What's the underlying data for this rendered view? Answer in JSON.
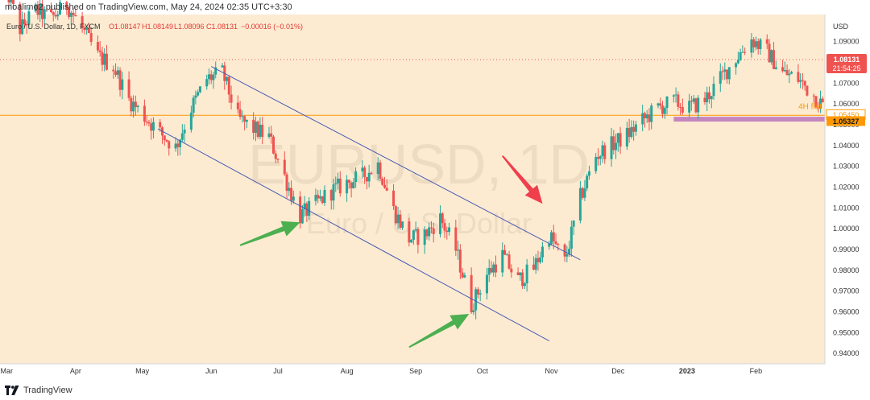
{
  "publisher": "moalimo2 published on TradingView.com, May 24, 2024 02:35 UTC+3:30",
  "legend": {
    "instrument": "Euro / U.S. Dollar, 1D, FXCM",
    "o": "O1.08147",
    "h": "H1.08149",
    "l": "L1.08096",
    "c": "C1.08131",
    "change": "−0.00016 (−0.01%)"
  },
  "watermark": {
    "symbol": "EURUSD, 1D",
    "name": "Euro / U.S. Dollar"
  },
  "footer": {
    "brand": "TradingView"
  },
  "colors": {
    "background": "#fcebd1",
    "up": "#26a69a",
    "down": "#ef5350",
    "channel": "#4a5bb5",
    "flat_line": "#ff9800",
    "flat_zone": "#c586c0",
    "arrow_up": "#4caf50",
    "arrow_down": "#ef3f4d"
  },
  "icons": {
    "brand_logo": "tradingview-logo-icon"
  },
  "chart_data": {
    "type": "candlestick",
    "currency": "USD",
    "ylim": [
      0.935,
      1.103
    ],
    "x_axis_labels": [
      "Mar",
      "Apr",
      "May",
      "Jun",
      "Jul",
      "Aug",
      "Sep",
      "Oct",
      "Nov",
      "Dec",
      "2023",
      "Feb"
    ],
    "x_axis_dates": [
      "2022-03-01",
      "2022-04-01",
      "2022-05-01",
      "2022-06-01",
      "2022-07-01",
      "2022-08-01",
      "2022-09-01",
      "2022-10-01",
      "2022-11-01",
      "2022-12-01",
      "2023-01-01",
      "2023-02-01"
    ],
    "x_range": [
      "2022-02-26",
      "2023-03-04"
    ],
    "y_ticks": [
      0.94,
      0.95,
      0.96,
      0.97,
      0.98,
      0.99,
      1.0,
      1.01,
      1.02,
      1.03,
      1.04,
      1.05,
      1.06,
      1.07,
      1.08,
      1.09
    ],
    "y_tick_labels": [
      "0.94000",
      "0.95000",
      "0.96000",
      "0.97000",
      "0.98000",
      "0.99000",
      "1.00000",
      "1.01000",
      "1.02000",
      "1.03000",
      "1.04000",
      "1.05000",
      "1.06000",
      "1.07000",
      "1.08000",
      "1.09000"
    ],
    "price_tags": [
      {
        "value": 1.08131,
        "label": "1.08131",
        "sublabel": "21:54:25",
        "color": "#ef5350"
      },
      {
        "value": 1.0545,
        "label": "1.05450",
        "color": "#ff9800",
        "note": "4H flat"
      },
      {
        "value": 1.05327,
        "label": "1.05327",
        "color": "#ff9800"
      }
    ],
    "horizontal_lines": [
      {
        "value": 1.0545,
        "style": "solid",
        "color": "#ff9800"
      },
      {
        "value": 1.08131,
        "style": "dotted",
        "color": "#ef5350"
      }
    ],
    "zones": [
      {
        "from_date": "2022-12-26",
        "to_date": "2023-03-04",
        "y0": 1.0515,
        "y1": 1.0538,
        "color": "#c586c0"
      }
    ],
    "channel": [
      {
        "from": [
          "2022-06-01",
          1.078
        ],
        "to": [
          "2022-11-14",
          0.985
        ]
      },
      {
        "from": [
          "2022-05-08",
          1.048
        ],
        "to": [
          "2022-10-31",
          0.946
        ]
      }
    ],
    "arrows": [
      {
        "direction": "up",
        "from": [
          "2022-06-14",
          0.992
        ],
        "to": [
          "2022-07-11",
          1.003
        ]
      },
      {
        "direction": "up",
        "from": [
          "2022-08-29",
          0.943
        ],
        "to": [
          "2022-09-25",
          0.959
        ]
      },
      {
        "direction": "down",
        "from": [
          "2022-10-10",
          1.035
        ],
        "to": [
          "2022-10-28",
          1.012
        ]
      }
    ],
    "price_path": [
      [
        "2022-02-28",
        1.118
      ],
      [
        "2022-03-07",
        1.096
      ],
      [
        "2022-03-14",
        1.105
      ],
      [
        "2022-03-21",
        1.101
      ],
      [
        "2022-03-28",
        1.108
      ],
      [
        "2022-04-04",
        1.096
      ],
      [
        "2022-04-11",
        1.083
      ],
      [
        "2022-04-18",
        1.078
      ],
      [
        "2022-04-25",
        1.062
      ],
      [
        "2022-05-02",
        1.054
      ],
      [
        "2022-05-09",
        1.046
      ],
      [
        "2022-05-16",
        1.039
      ],
      [
        "2022-05-23",
        1.058
      ],
      [
        "2022-05-30",
        1.072
      ],
      [
        "2022-06-06",
        1.075
      ],
      [
        "2022-06-13",
        1.053
      ],
      [
        "2022-06-20",
        1.048
      ],
      [
        "2022-06-27",
        1.044
      ],
      [
        "2022-07-04",
        1.025
      ],
      [
        "2022-07-11",
        1.006
      ],
      [
        "2022-07-18",
        1.012
      ],
      [
        "2022-07-25",
        1.018
      ],
      [
        "2022-08-01",
        1.022
      ],
      [
        "2022-08-08",
        1.025
      ],
      [
        "2022-08-15",
        1.031
      ],
      [
        "2022-08-22",
        1.009
      ],
      [
        "2022-08-29",
        0.995
      ],
      [
        "2022-09-05",
        0.997
      ],
      [
        "2022-09-12",
        1.005
      ],
      [
        "2022-09-19",
        0.99
      ],
      [
        "2022-09-26",
        0.963
      ],
      [
        "2022-10-03",
        0.978
      ],
      [
        "2022-10-10",
        0.987
      ],
      [
        "2022-10-17",
        0.975
      ],
      [
        "2022-10-24",
        0.981
      ],
      [
        "2022-10-31",
        0.997
      ],
      [
        "2022-11-07",
        0.984
      ],
      [
        "2022-11-14",
        1.015
      ],
      [
        "2022-11-21",
        1.035
      ],
      [
        "2022-11-28",
        1.04
      ],
      [
        "2022-12-05",
        1.045
      ],
      [
        "2022-12-12",
        1.052
      ],
      [
        "2022-12-19",
        1.058
      ],
      [
        "2022-12-26",
        1.061
      ],
      [
        "2023-01-02",
        1.058
      ],
      [
        "2023-01-09",
        1.062
      ],
      [
        "2023-01-16",
        1.072
      ],
      [
        "2023-01-23",
        1.082
      ],
      [
        "2023-01-30",
        1.091
      ],
      [
        "2023-02-06",
        1.085
      ],
      [
        "2023-02-13",
        1.075
      ],
      [
        "2023-02-20",
        1.072
      ],
      [
        "2023-02-27",
        1.064
      ],
      [
        "2023-03-04",
        1.058
      ]
    ]
  }
}
